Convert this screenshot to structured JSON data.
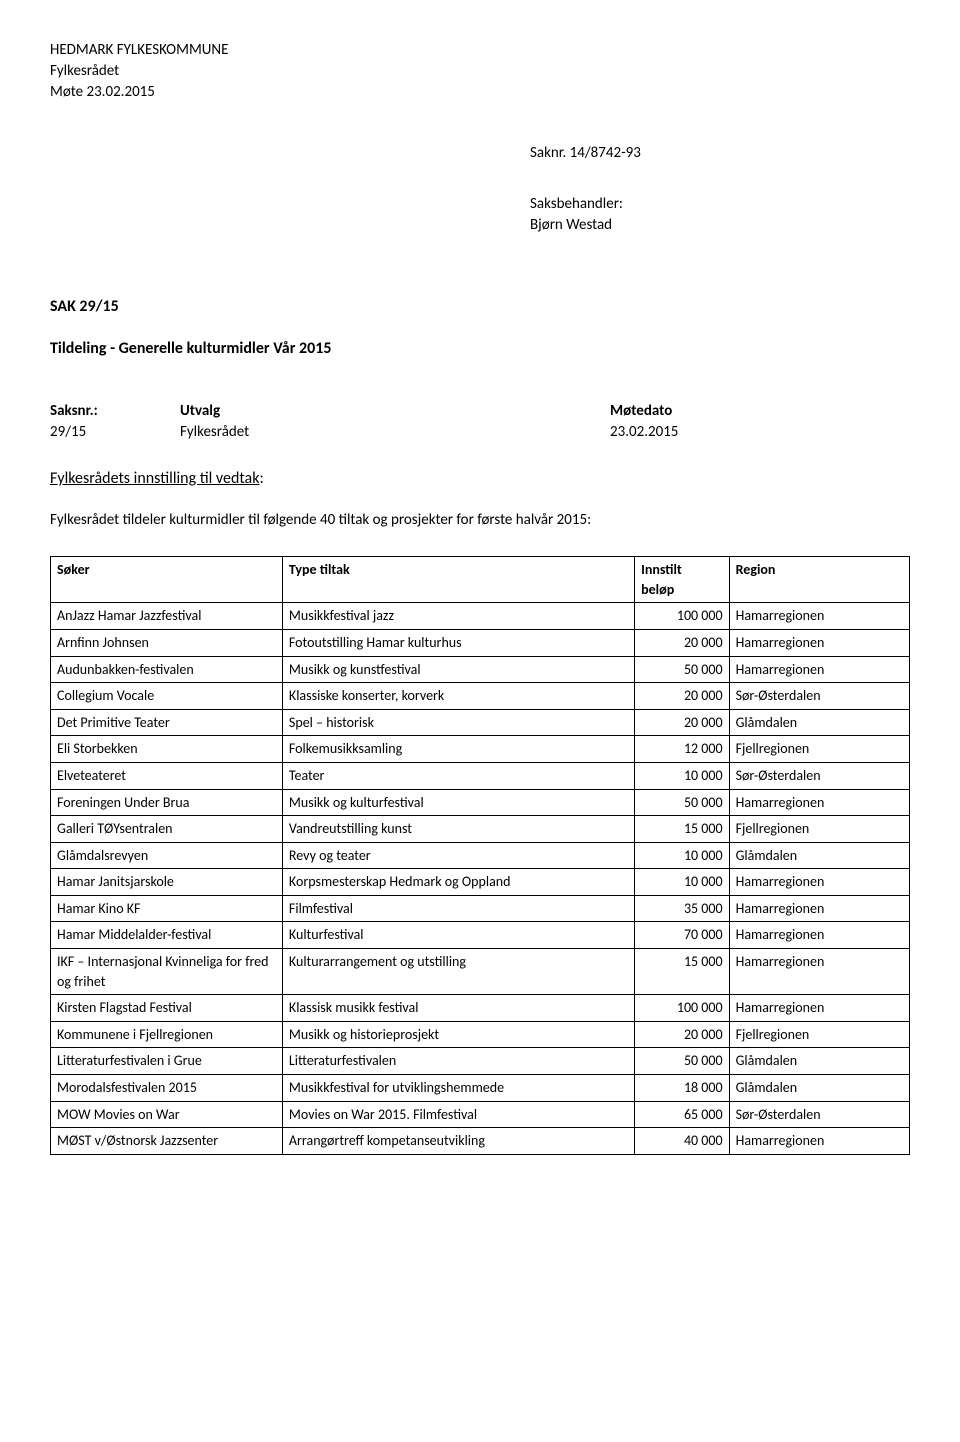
{
  "header": {
    "org": "HEDMARK FYLKESKOMMUNE",
    "body": "Fylkesrådet",
    "meeting": "Møte 23.02.2015"
  },
  "saknr": {
    "label": "Saknr. 14/8742-93"
  },
  "saksbehandler": {
    "label": "Saksbehandler:",
    "name": "Bjørn Westad"
  },
  "sak": {
    "heading": "SAK  29/15",
    "title": "Tildeling - Generelle kulturmidler Vår 2015"
  },
  "utvalg": {
    "h_saksnr": "Saksnr.:",
    "h_utvalg": "Utvalg",
    "h_date": "Møtedato",
    "r_saksnr": "29/15",
    "r_utvalg": "Fylkesrådet",
    "r_date": "23.02.2015"
  },
  "innstilling": {
    "heading_ul": "Fylkesrådets innstilling til vedtak",
    "heading_colon": ":",
    "intro": "Fylkesrådet tildeler kulturmidler til følgende 40 tiltak og prosjekter for første halvår 2015:"
  },
  "table": {
    "columns": {
      "soker": "Søker",
      "type": "Type tiltak",
      "belop_l1": "Innstilt",
      "belop_l2": "beløp",
      "region": "Region"
    },
    "rows": [
      {
        "soker": "AnJazz Hamar Jazzfestival",
        "type": "Musikkfestival jazz",
        "belop": "100 000",
        "region": "Hamarregionen"
      },
      {
        "soker": "Arnfinn Johnsen",
        "type": "Fotoutstilling Hamar kulturhus",
        "belop": "20 000",
        "region": "Hamarregionen"
      },
      {
        "soker": "Audunbakken-festivalen",
        "type": "Musikk og kunstfestival",
        "belop": "50 000",
        "region": "Hamarregionen"
      },
      {
        "soker": "Collegium Vocale",
        "type": "Klassiske konserter, korverk",
        "belop": "20 000",
        "region": "Sør-Østerdalen"
      },
      {
        "soker": "Det Primitive Teater",
        "type": "Spel – historisk",
        "belop": "20 000",
        "region": "Glåmdalen"
      },
      {
        "soker": "Eli Storbekken",
        "type": "Folkemusikksamling",
        "belop": "12 000",
        "region": "Fjellregionen"
      },
      {
        "soker": "Elveteateret",
        "type": "Teater",
        "belop": "10 000",
        "region": "Sør-Østerdalen"
      },
      {
        "soker": "Foreningen Under Brua",
        "type": "Musikk og kulturfestival",
        "belop": "50 000",
        "region": "Hamarregionen"
      },
      {
        "soker": "Galleri TØYsentralen",
        "type": "Vandreutstilling kunst",
        "belop": "15 000",
        "region": "Fjellregionen"
      },
      {
        "soker": "Glåmdalsrevyen",
        "type": "Revy og teater",
        "belop": "10 000",
        "region": "Glåmdalen"
      },
      {
        "soker": "Hamar Janitsjarskole",
        "type": "Korpsmesterskap Hedmark og Oppland",
        "belop": "10 000",
        "region": "Hamarregionen"
      },
      {
        "soker": "Hamar Kino KF",
        "type": "Filmfestival",
        "belop": "35 000",
        "region": "Hamarregionen"
      },
      {
        "soker": "Hamar Middelalder-festival",
        "type": "Kulturfestival",
        "belop": "70 000",
        "region": "Hamarregionen"
      },
      {
        "soker": "IKF – Internasjonal Kvinneliga for fred og frihet",
        "type": "Kulturarrangement og utstilling",
        "belop": "15 000",
        "region": "Hamarregionen"
      },
      {
        "soker": "Kirsten Flagstad Festival",
        "type": "Klassisk musikk festival",
        "belop": "100 000",
        "region": "Hamarregionen"
      },
      {
        "soker": "Kommunene i Fjellregionen",
        "type": "Musikk og historieprosjekt",
        "belop": "20 000",
        "region": "Fjellregionen"
      },
      {
        "soker": "Litteraturfestivalen i Grue",
        "type": "Litteraturfestivalen",
        "belop": "50 000",
        "region": "Glåmdalen"
      },
      {
        "soker": "Morodalsfestivalen 2015",
        "type": "Musikkfestival for utviklingshemmede",
        "belop": "18 000",
        "region": "Glåmdalen"
      },
      {
        "soker": "MOW Movies on War",
        "type": "Movies on War 2015. Filmfestival",
        "belop": "65 000",
        "region": "Sør-Østerdalen"
      },
      {
        "soker": "MØST v/Østnorsk Jazzsenter",
        "type": "Arrangørtreff kompetanseutvikling",
        "belop": "40 000",
        "region": "Hamarregionen"
      }
    ]
  }
}
